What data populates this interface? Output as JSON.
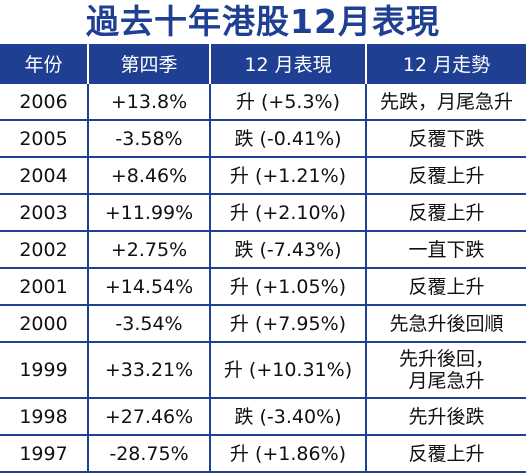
{
  "title": "過去十年港股12月表現",
  "headers": [
    "年份",
    "第四季",
    "12 月表現",
    "12 月走勢"
  ],
  "rows": [
    {
      "year": "2006",
      "q4": "+13.8%",
      "dec": "升 (+5.3%)",
      "trend": "先跌，月尾急升"
    },
    {
      "year": "2005",
      "q4": "-3.58%",
      "dec": "跌 (-0.41%)",
      "trend": "反覆下跌"
    },
    {
      "year": "2004",
      "q4": "+8.46%",
      "dec": "升 (+1.21%)",
      "trend": "反覆上升"
    },
    {
      "year": "2003",
      "q4": "+11.99%",
      "dec": "升 (+2.10%)",
      "trend": "反覆上升"
    },
    {
      "year": "2002",
      "q4": "+2.75%",
      "dec": "跌 (-7.43%)",
      "trend": "一直下跌"
    },
    {
      "year": "2001",
      "q4": "+14.54%",
      "dec": "升 (+1.05%)",
      "trend": "反覆上升"
    },
    {
      "year": "2000",
      "q4": "-3.54%",
      "dec": "升 (+7.95%)",
      "trend": "先急升後回順"
    },
    {
      "year": "1999",
      "q4": "+33.21%",
      "dec": "升 (+10.31%)",
      "trend_line1": "先升後回，",
      "trend_line2": "月尾急升"
    },
    {
      "year": "1998",
      "q4": "+27.46%",
      "dec": "跌 (-3.40%)",
      "trend": "先升後跌"
    },
    {
      "year": "1997",
      "q4": "-28.75%",
      "dec": "升 (+1.86%)",
      "trend": "反覆上升"
    }
  ],
  "colors": {
    "header_bg": "#1f3f93",
    "title": "#1f3f93",
    "grid": "#1f3f93"
  }
}
